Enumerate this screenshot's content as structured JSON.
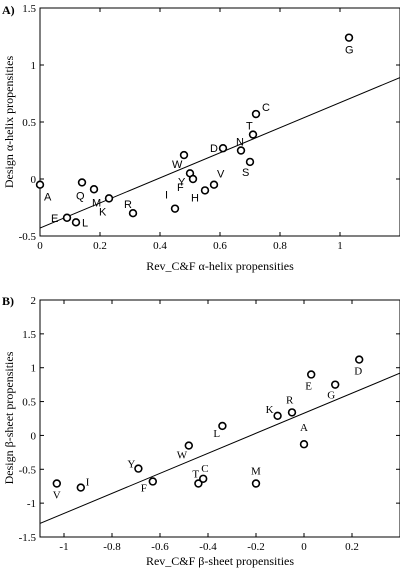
{
  "chart_data": [
    {
      "type": "scatter",
      "panel_label": "A)",
      "xlabel": "Rev_C&F α-helix propensities",
      "ylabel": "Design α-helix propensities",
      "xlim": [
        0,
        1.2
      ],
      "ylim": [
        -0.5,
        1.5
      ],
      "x_ticks": [
        0,
        0.2,
        0.4,
        0.6,
        0.8,
        1
      ],
      "x_tick_labels": [
        "0",
        "0.2",
        "0.4",
        "0.6",
        "0.8",
        "1"
      ],
      "y_ticks": [
        -0.5,
        0,
        0.5,
        1,
        1.5
      ],
      "y_tick_labels": [
        "-0.5",
        "0",
        "0.5",
        "1",
        "1.5"
      ],
      "grid": false,
      "marker": "open-circle",
      "points": [
        {
          "label": "A",
          "x": 0.0,
          "y": -0.05
        },
        {
          "label": "E",
          "x": 0.09,
          "y": -0.34
        },
        {
          "label": "L",
          "x": 0.12,
          "y": -0.38
        },
        {
          "label": "Q",
          "x": 0.14,
          "y": -0.03
        },
        {
          "label": "M",
          "x": 0.18,
          "y": -0.09
        },
        {
          "label": "K",
          "x": 0.23,
          "y": -0.17
        },
        {
          "label": "R",
          "x": 0.31,
          "y": -0.3
        },
        {
          "label": "I",
          "x": 0.45,
          "y": -0.26
        },
        {
          "label": "W",
          "x": 0.48,
          "y": 0.21
        },
        {
          "label": "Y",
          "x": 0.5,
          "y": 0.05
        },
        {
          "label": "F",
          "x": 0.51,
          "y": 0.0
        },
        {
          "label": "H",
          "x": 0.55,
          "y": -0.1
        },
        {
          "label": "V",
          "x": 0.58,
          "y": -0.05
        },
        {
          "label": "D",
          "x": 0.61,
          "y": 0.27
        },
        {
          "label": "N",
          "x": 0.67,
          "y": 0.25
        },
        {
          "label": "S",
          "x": 0.7,
          "y": 0.15
        },
        {
          "label": "T",
          "x": 0.71,
          "y": 0.39
        },
        {
          "label": "C",
          "x": 0.72,
          "y": 0.57
        },
        {
          "label": "G",
          "x": 1.03,
          "y": 1.24
        }
      ],
      "fit_line": {
        "x": [
          0,
          1.2
        ],
        "y": [
          -0.43,
          0.89
        ]
      }
    },
    {
      "type": "scatter",
      "panel_label": "B)",
      "xlabel": "Rev_C&F  β-sheet propensities",
      "ylabel": "Design β-sheet propensities",
      "xlim": [
        -1.1,
        0.4
      ],
      "ylim": [
        -1.5,
        2
      ],
      "x_ticks": [
        -1,
        -0.8,
        -0.6,
        -0.4,
        -0.2,
        0,
        0.2
      ],
      "x_tick_labels": [
        "-1",
        "-0.8",
        "-0.6",
        "-0.4",
        "-0.2",
        "0",
        "0.2"
      ],
      "y_ticks": [
        -1.5,
        -1,
        -0.5,
        0,
        0.5,
        1,
        1.5,
        2
      ],
      "y_tick_labels": [
        "-1.5",
        "-1",
        "-0.5",
        "0",
        "0.5",
        "1",
        "1.5",
        "2"
      ],
      "grid": false,
      "marker": "open-circle",
      "points": [
        {
          "label": "V",
          "x": -1.03,
          "y": -0.71
        },
        {
          "label": "I",
          "x": -0.93,
          "y": -0.77
        },
        {
          "label": "Y",
          "x": -0.69,
          "y": -0.49
        },
        {
          "label": "F",
          "x": -0.63,
          "y": -0.68
        },
        {
          "label": "W",
          "x": -0.48,
          "y": -0.15
        },
        {
          "label": "T",
          "x": -0.44,
          "y": -0.71
        },
        {
          "label": "C",
          "x": -0.42,
          "y": -0.64
        },
        {
          "label": "L",
          "x": -0.34,
          "y": 0.14
        },
        {
          "label": "M",
          "x": -0.2,
          "y": -0.71
        },
        {
          "label": "K",
          "x": -0.11,
          "y": 0.29
        },
        {
          "label": "R",
          "x": -0.05,
          "y": 0.34
        },
        {
          "label": "A",
          "x": 0.0,
          "y": -0.13
        },
        {
          "label": "E",
          "x": 0.03,
          "y": 0.9
        },
        {
          "label": "G",
          "x": 0.13,
          "y": 0.75
        },
        {
          "label": "D",
          "x": 0.23,
          "y": 1.12
        }
      ],
      "fit_line": {
        "x": [
          -1.1,
          0.4
        ],
        "y": [
          -1.3,
          0.92
        ]
      }
    }
  ]
}
